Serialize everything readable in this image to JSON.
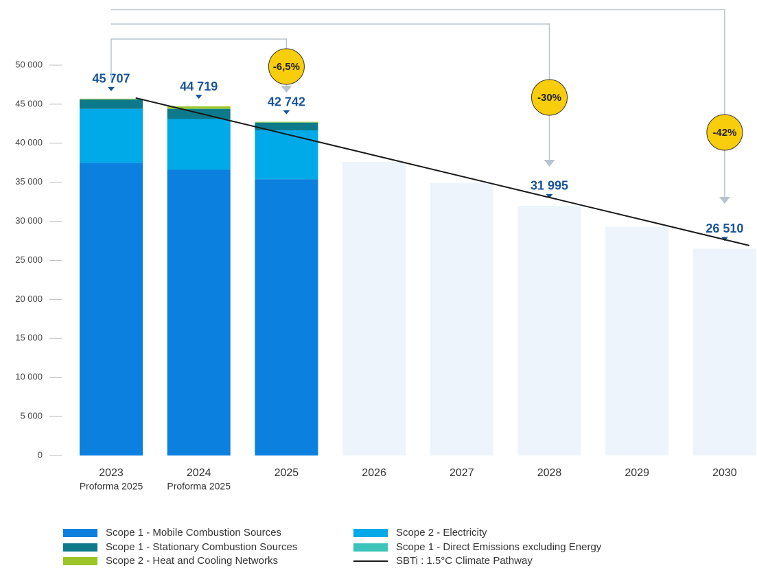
{
  "chart_data": {
    "type": "stacked_bar",
    "categories": [
      "2023",
      "2024",
      "2025",
      "2026",
      "2027",
      "2028",
      "2029",
      "2030"
    ],
    "category_sublabels": [
      "Proforma 2025",
      "Proforma 2025",
      null,
      null,
      null,
      null,
      null,
      null
    ],
    "series": [
      {
        "name": "Scope 1 -  Mobile Combustion Sources",
        "color": "#0b80de",
        "values": [
          37500,
          36600,
          35400,
          null,
          null,
          null,
          null,
          null
        ]
      },
      {
        "name": "Scope 1 -  Stationary Combustion Sources",
        "color": "#0d7a8c",
        "values": [
          1200,
          1300,
          990,
          null,
          null,
          null,
          null,
          null
        ]
      },
      {
        "name": "Scope 2 - Heat and Cooling Networks",
        "color": "#9cc528",
        "values": [
          80,
          300,
          80,
          null,
          null,
          null,
          null,
          null
        ]
      },
      {
        "name": "Scope 2 - Electricity",
        "color": "#00a9e8",
        "values": [
          6900,
          6500,
          6250,
          null,
          null,
          null,
          null,
          null
        ]
      },
      {
        "name": "Scope 1 - Direct Emissions excluding Energy",
        "color": "#3cc4bb",
        "values": [
          27,
          19,
          22,
          null,
          null,
          null,
          null,
          null
        ]
      }
    ],
    "totals": {
      "values": [
        45707,
        44719,
        42742,
        null,
        null,
        null,
        null,
        null
      ],
      "value_labels": [
        "45 707",
        "44 719",
        "42 742",
        null,
        null,
        null,
        null,
        null
      ]
    },
    "targets": {
      "color": "#eef4fb",
      "values": [
        null,
        null,
        null,
        37600,
        34900,
        31995,
        29300,
        26510
      ],
      "value_labels": [
        null,
        null,
        null,
        null,
        null,
        "31 995",
        null,
        "26 510"
      ]
    },
    "line": {
      "name": "SBTi : 1.5°C Climate Pathway",
      "color": "#1a1a1a",
      "values": [
        45800,
        43100,
        40400,
        37700,
        35000,
        32300,
        29600,
        26900
      ]
    },
    "annotations": [
      "-6,5%",
      "-30%",
      "-42%"
    ],
    "ylim": [
      0,
      50000
    ],
    "yticks": [
      {
        "value": 0,
        "label": "0"
      },
      {
        "value": 5000,
        "label": "5 000"
      },
      {
        "value": 10000,
        "label": "10 000"
      },
      {
        "value": 15000,
        "label": "15 000"
      },
      {
        "value": 20000,
        "label": "20 000"
      },
      {
        "value": 25000,
        "label": "25 000"
      },
      {
        "value": 30000,
        "label": "30 000"
      },
      {
        "value": 35000,
        "label": "35 000"
      },
      {
        "value": 40000,
        "label": "40 000"
      },
      {
        "value": 45000,
        "label": "45 000"
      },
      {
        "value": 50000,
        "label": "50 000"
      }
    ]
  }
}
